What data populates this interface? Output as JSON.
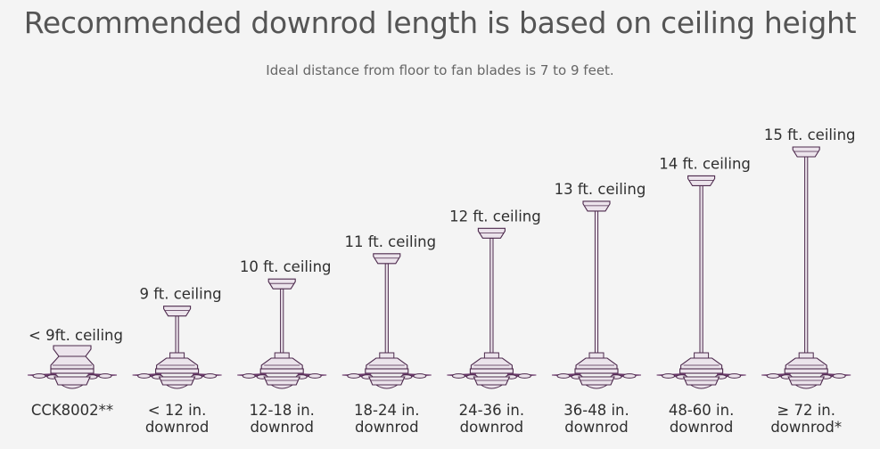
{
  "title": "Recommended downrod length is based on ceiling height",
  "subtitle": "Ideal distance from floor to fan blades is 7 to 9 feet.",
  "colors": {
    "fan_fill": "#ece4ec",
    "fan_stroke": "#4d2a4d",
    "blade": "#6b3a6b"
  },
  "fans": [
    {
      "ceiling_label": "< 9ft. ceiling",
      "bottom_line1": "CCK8002**",
      "bottom_line2": "",
      "flush_mount": true,
      "downrod_ratio": 0
    },
    {
      "ceiling_label": "9 ft. ceiling",
      "bottom_line1": "< 12 in.",
      "bottom_line2": "downrod",
      "flush_mount": false,
      "downrod_ratio": 0.12
    },
    {
      "ceiling_label": "10 ft. ceiling",
      "bottom_line1": "12-18 in.",
      "bottom_line2": "downrod",
      "flush_mount": false,
      "downrod_ratio": 0.27
    },
    {
      "ceiling_label": "11 ft. ceiling",
      "bottom_line1": "18-24 in.",
      "bottom_line2": "downrod",
      "flush_mount": false,
      "downrod_ratio": 0.41
    },
    {
      "ceiling_label": "12 ft. ceiling",
      "bottom_line1": "24-36 in.",
      "bottom_line2": "downrod",
      "flush_mount": false,
      "downrod_ratio": 0.55
    },
    {
      "ceiling_label": "13 ft. ceiling",
      "bottom_line1": "36-48 in.",
      "bottom_line2": "downrod",
      "flush_mount": false,
      "downrod_ratio": 0.7
    },
    {
      "ceiling_label": "14 ft. ceiling",
      "bottom_line1": "48-60 in.",
      "bottom_line2": "downrod",
      "flush_mount": false,
      "downrod_ratio": 0.84
    },
    {
      "ceiling_label": "15 ft. ceiling",
      "bottom_line1": "≥ 72 in.",
      "bottom_line2": "downrod*",
      "flush_mount": false,
      "downrod_ratio": 1.0
    }
  ]
}
